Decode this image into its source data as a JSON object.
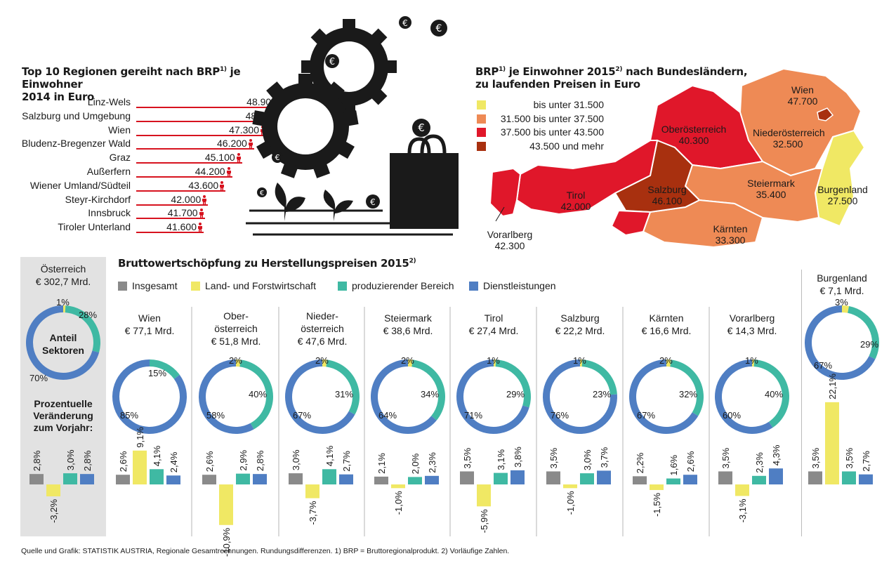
{
  "ranking": {
    "title_line1": "Top 10 Regionen gereiht nach BRP",
    "title_sup": "1)",
    "title_line1_end": " je Einwohner",
    "title_line2": "2014 in Euro",
    "items": [
      {
        "label": "Linz-Wels",
        "display": "48.900",
        "value": 48900
      },
      {
        "label": "Salzburg und Umgebung",
        "display": "48.800",
        "value": 48800
      },
      {
        "label": "Wien",
        "display": "47.300",
        "value": 47300
      },
      {
        "label": "Bludenz-Bregenzer Wald",
        "display": "46.200",
        "value": 46200
      },
      {
        "label": "Graz",
        "display": "45.100",
        "value": 45100
      },
      {
        "label": "Außerfern",
        "display": "44.200",
        "value": 44200
      },
      {
        "label": "Wiener Umland/Südteil",
        "display": "43.600",
        "value": 43600
      },
      {
        "label": "Steyr-Kirchdorf",
        "display": "42.000",
        "value": 42000
      },
      {
        "label": "Innsbruck",
        "display": "41.700",
        "value": 41700
      },
      {
        "label": "Tiroler Unterland",
        "display": "41.600",
        "value": 41600
      }
    ]
  },
  "map": {
    "title_line1_a": "BRP",
    "title_sup1": "1)",
    "title_line1_b": " je Einwohner 2015",
    "title_sup2": "2)",
    "title_line1_c": " nach Bundesländern,",
    "title_line2": "zu laufenden Preisen in Euro",
    "legend": [
      {
        "label": "bis unter 31.500",
        "color": "#f0e864"
      },
      {
        "label": "31.500 bis unter 37.500",
        "color": "#ee8a55"
      },
      {
        "label": "37.500 bis unter 43.500",
        "color": "#e0172a"
      },
      {
        "label": "43.500 und mehr",
        "color": "#a8300f"
      }
    ],
    "states": [
      {
        "name": "Wien",
        "value": "47.700"
      },
      {
        "name": "Oberösterreich",
        "value": "40.300"
      },
      {
        "name": "Niederösterreich",
        "value": "32.500"
      },
      {
        "name": "Tirol",
        "value": "42.000"
      },
      {
        "name": "Salzburg",
        "value": "46.100"
      },
      {
        "name": "Steiermark",
        "value": "35.400"
      },
      {
        "name": "Burgenland",
        "value": "27.500"
      },
      {
        "name": "Kärnten",
        "value": "33.300"
      },
      {
        "name": "Vorarlberg",
        "value": "42.300"
      }
    ]
  },
  "sectors": {
    "title": "Bruttowertschöpfung zu Herstellungspreisen 2015",
    "title_sup": "2)",
    "legend": [
      {
        "label": "Insgesamt",
        "color": "#8a8a8a"
      },
      {
        "label": "Land- und Forstwirtschaft",
        "color": "#f0e864"
      },
      {
        "label": "produzierender Bereich",
        "color": "#3fb9a3"
      },
      {
        "label": "Dienstleistungen",
        "color": "#4f7ec3"
      }
    ]
  },
  "austria_panel": {
    "title1": "Österreich",
    "title2": "€ 302,7 Mrd.",
    "center1": "Anteil",
    "center2": "Sektoren",
    "change_label1": "Prozentuelle",
    "change_label2": "Veränderung",
    "change_label3": "zum Vorjahr:"
  },
  "chart_data": {
    "type": "bar",
    "shares_unit": "%",
    "change_unit": "%",
    "series": [
      {
        "name": "Insgesamt"
      },
      {
        "name": "Land- und Forstwirtschaft"
      },
      {
        "name": "produzierender Bereich"
      },
      {
        "name": "Dienstleistungen"
      }
    ],
    "regions": [
      {
        "name1": "Österreich",
        "name2": "€ 302,7 Mrd.",
        "shares": [
          1,
          28,
          70
        ],
        "share_labels": [
          "1%",
          "28%",
          "70%"
        ],
        "changes": [
          2.8,
          -3.2,
          3.0,
          2.8
        ],
        "change_labels": [
          "2,8%",
          "-3,2%",
          "3,0%",
          "2,8%"
        ]
      },
      {
        "name1": "Wien",
        "name2": "€ 77,1 Mrd.",
        "shares": [
          0,
          15,
          85
        ],
        "share_labels": [
          "",
          "15%",
          "85%"
        ],
        "changes": [
          2.6,
          9.1,
          4.1,
          2.4
        ],
        "change_labels": [
          "2,6%",
          "9,1%",
          "4,1%",
          "2,4%"
        ]
      },
      {
        "name1": "Ober-",
        "name1b": "österreich",
        "name2": "€ 51,8 Mrd.",
        "shares": [
          2,
          40,
          58
        ],
        "share_labels": [
          "2%",
          "40%",
          "58%"
        ],
        "changes": [
          2.6,
          -10.9,
          2.9,
          2.8
        ],
        "change_labels": [
          "2,6%",
          "-10,9%",
          "2,9%",
          "2,8%"
        ]
      },
      {
        "name1": "Nieder-",
        "name1b": "österreich",
        "name2": "€ 47,6 Mrd.",
        "shares": [
          2,
          31,
          67
        ],
        "share_labels": [
          "2%",
          "31%",
          "67%"
        ],
        "changes": [
          3.0,
          -3.7,
          4.1,
          2.7
        ],
        "change_labels": [
          "3,0%",
          "-3,7%",
          "4,1%",
          "2,7%"
        ]
      },
      {
        "name1": "Steiermark",
        "name2": "€ 38,6 Mrd.",
        "shares": [
          2,
          34,
          64
        ],
        "share_labels": [
          "2%",
          "34%",
          "64%"
        ],
        "changes": [
          2.1,
          -1.0,
          2.0,
          2.3
        ],
        "change_labels": [
          "2,1%",
          "-1,0%",
          "2,0%",
          "2,3%"
        ]
      },
      {
        "name1": "Tirol",
        "name2": "€ 27,4 Mrd.",
        "shares": [
          1,
          29,
          71
        ],
        "share_labels": [
          "1%",
          "29%",
          "71%"
        ],
        "changes": [
          3.5,
          -5.9,
          3.1,
          3.8
        ],
        "change_labels": [
          "3,5%",
          "-5,9%",
          "3,1%",
          "3,8%"
        ]
      },
      {
        "name1": "Salzburg",
        "name2": "€ 22,2 Mrd.",
        "shares": [
          1,
          23,
          76
        ],
        "share_labels": [
          "1%",
          "23%",
          "76%"
        ],
        "changes": [
          3.5,
          -1.0,
          3.0,
          3.7
        ],
        "change_labels": [
          "3,5%",
          "-1,0%",
          "3,0%",
          "3,7%"
        ]
      },
      {
        "name1": "Kärnten",
        "name2": "€ 16,6 Mrd.",
        "shares": [
          2,
          32,
          67
        ],
        "share_labels": [
          "2%",
          "32%",
          "67%"
        ],
        "changes": [
          2.2,
          -1.5,
          1.6,
          2.6
        ],
        "change_labels": [
          "2,2%",
          "-1,5%",
          "1,6%",
          "2,6%"
        ]
      },
      {
        "name1": "Vorarlberg",
        "name2": "€ 14,3 Mrd.",
        "shares": [
          1,
          40,
          60
        ],
        "share_labels": [
          "1%",
          "40%",
          "60%"
        ],
        "changes": [
          3.5,
          -3.1,
          2.3,
          4.3
        ],
        "change_labels": [
          "3,5%",
          "-3,1%",
          "2,3%",
          "4,3%"
        ]
      },
      {
        "name1": "Burgenland",
        "name2": "€ 7,1 Mrd.",
        "shares": [
          3,
          29,
          67
        ],
        "share_labels": [
          "3%",
          "29%",
          "67%"
        ],
        "changes": [
          3.5,
          22.1,
          3.5,
          2.7
        ],
        "change_labels": [
          "3,5%",
          "22,1%",
          "3,5%",
          "2,7%"
        ]
      }
    ]
  },
  "source": "Quelle und Grafik: STATISTIK AUSTRIA, Regionale Gesamtrechnungen. Rundungsdifferenzen. 1) BRP = Bruttoregionalprodukt. 2) Vorläufige Zahlen.",
  "colors": {
    "red": "#d7131f",
    "grey": "#8a8a8a",
    "yellow": "#f0e864",
    "teal": "#3fb9a3",
    "blue": "#4f7ec3"
  }
}
